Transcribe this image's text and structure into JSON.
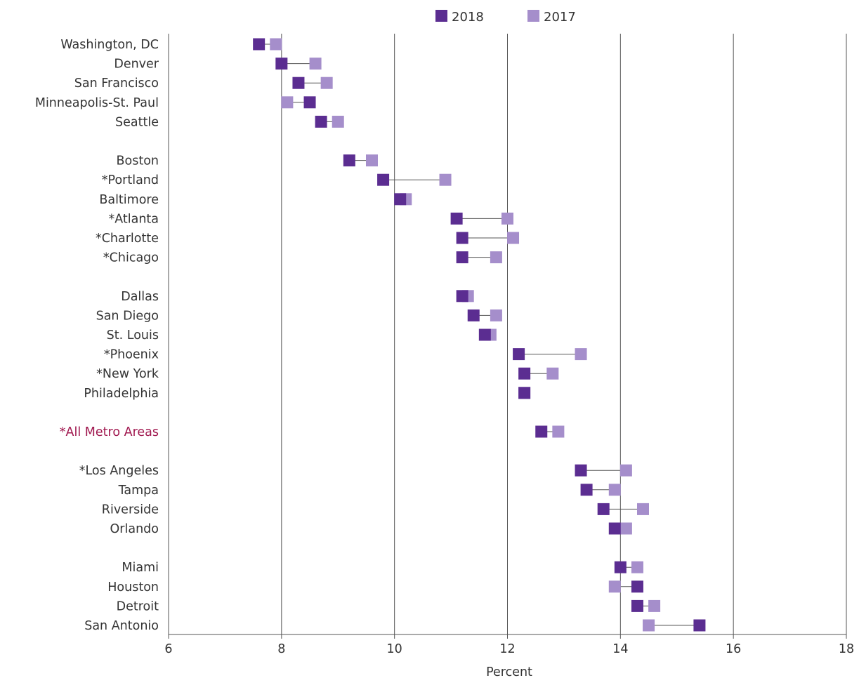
{
  "chart_data": {
    "type": "dumbbell",
    "xlabel": "Percent",
    "xlim": [
      6,
      18
    ],
    "x_ticks": [
      "6",
      "8",
      "10",
      "12",
      "14",
      "16",
      "18"
    ],
    "grid": "vertical",
    "legend_position": "top-center",
    "series": [
      {
        "name": "2018",
        "color": "#5b2d91"
      },
      {
        "name": "2017",
        "color": "#a58ecb"
      }
    ],
    "colors": {
      "highlight_label": "#a0184f",
      "label": "#333333",
      "grid": "#555555",
      "connector": "#555555"
    },
    "rows": [
      {
        "label": "Washington, DC",
        "v2018": 7.6,
        "v2017": 7.9
      },
      {
        "label": "Denver",
        "v2018": 8.0,
        "v2017": 8.6
      },
      {
        "label": "San Francisco",
        "v2018": 8.3,
        "v2017": 8.8
      },
      {
        "label": "Minneapolis-St. Paul",
        "v2018": 8.5,
        "v2017": 8.1
      },
      {
        "label": "Seattle",
        "v2018": 8.7,
        "v2017": 9.0
      },
      {
        "gap": true
      },
      {
        "label": "Boston",
        "v2018": 9.2,
        "v2017": 9.6
      },
      {
        "label": "*Portland",
        "v2018": 9.8,
        "v2017": 10.9
      },
      {
        "label": "Baltimore",
        "v2018": 10.1,
        "v2017": 10.2
      },
      {
        "label": "*Atlanta",
        "v2018": 11.1,
        "v2017": 12.0
      },
      {
        "label": "*Charlotte",
        "v2018": 11.2,
        "v2017": 12.1
      },
      {
        "label": "*Chicago",
        "v2018": 11.2,
        "v2017": 11.8
      },
      {
        "gap": true
      },
      {
        "label": "Dallas",
        "v2018": 11.2,
        "v2017": 11.3
      },
      {
        "label": "San Diego",
        "v2018": 11.4,
        "v2017": 11.8
      },
      {
        "label": "St. Louis",
        "v2018": 11.6,
        "v2017": 11.7
      },
      {
        "label": "*Phoenix",
        "v2018": 12.2,
        "v2017": 13.3
      },
      {
        "label": "*New York",
        "v2018": 12.3,
        "v2017": 12.8
      },
      {
        "label": "Philadelphia",
        "v2018": 12.3,
        "v2017": 12.3
      },
      {
        "gap": true
      },
      {
        "label": "*All Metro Areas",
        "v2018": 12.6,
        "v2017": 12.9,
        "highlight": true
      },
      {
        "gap": true
      },
      {
        "label": "*Los Angeles",
        "v2018": 13.3,
        "v2017": 14.1
      },
      {
        "label": "Tampa",
        "v2018": 13.4,
        "v2017": 13.9
      },
      {
        "label": "Riverside",
        "v2018": 13.7,
        "v2017": 14.4
      },
      {
        "label": "Orlando",
        "v2018": 13.9,
        "v2017": 14.1
      },
      {
        "gap": true
      },
      {
        "label": "Miami",
        "v2018": 14.0,
        "v2017": 14.3
      },
      {
        "label": "Houston",
        "v2018": 14.3,
        "v2017": 13.9
      },
      {
        "label": "Detroit",
        "v2018": 14.3,
        "v2017": 14.6
      },
      {
        "label": "San Antonio",
        "v2018": 15.4,
        "v2017": 14.5
      }
    ]
  }
}
